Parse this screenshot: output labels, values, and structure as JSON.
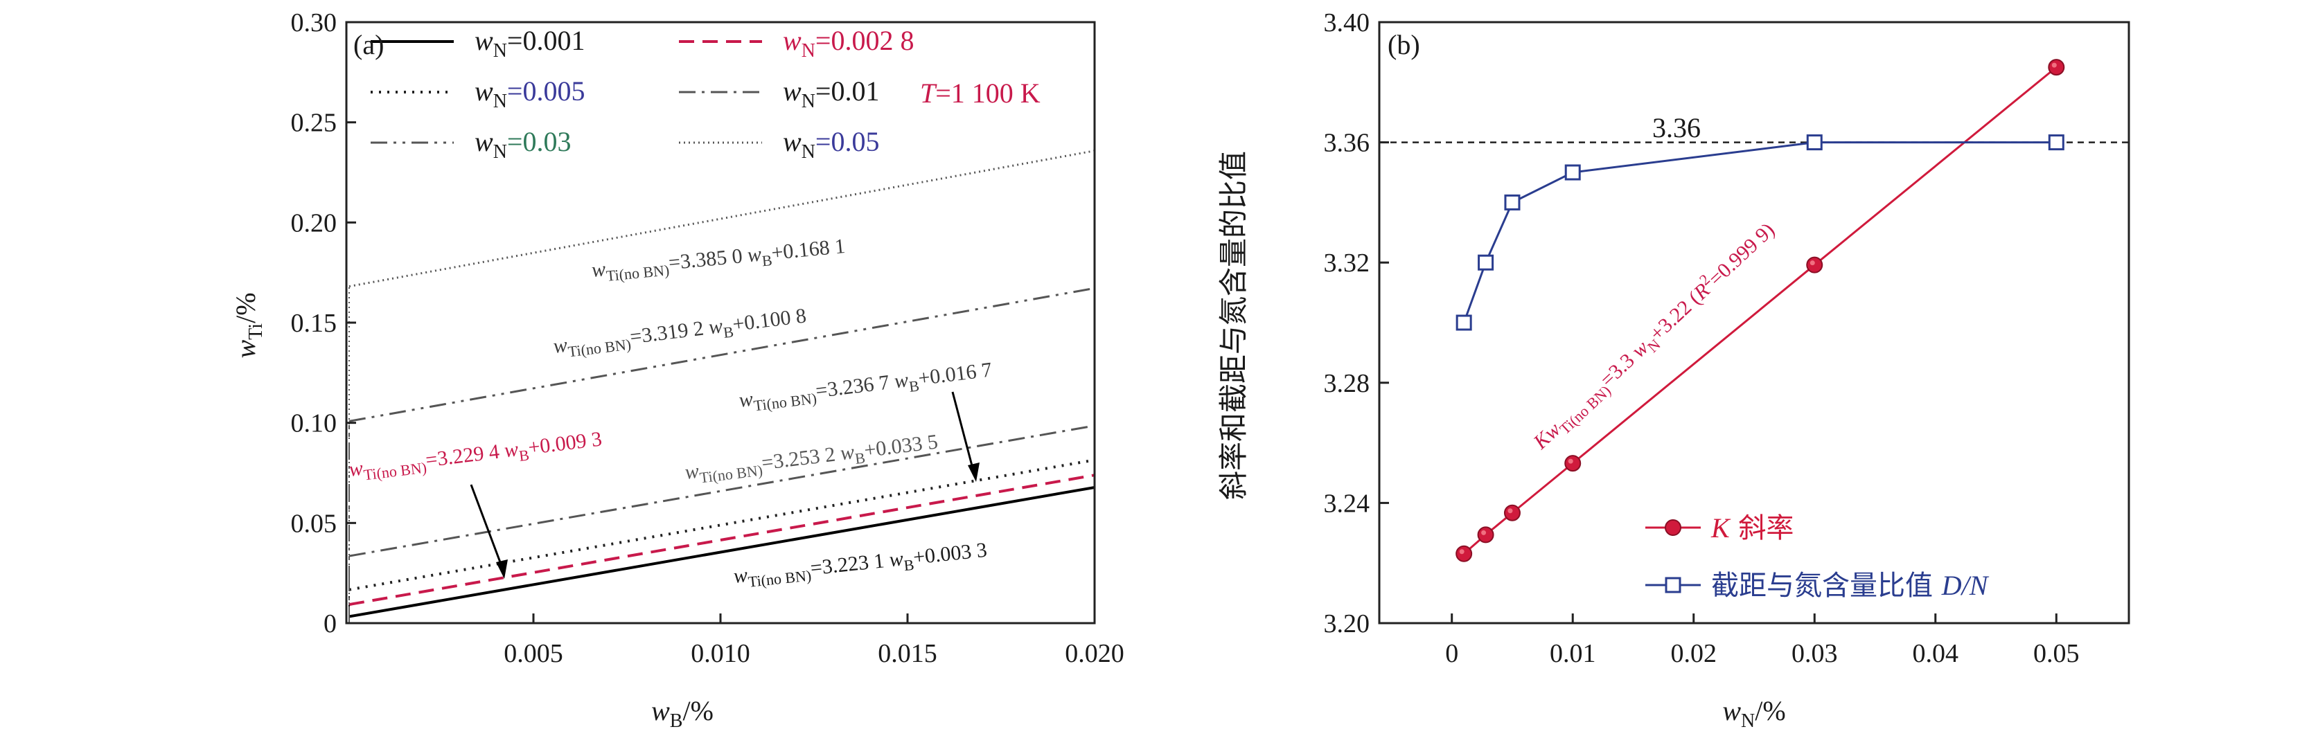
{
  "chart_data": [
    {
      "panel": "(a)",
      "type": "line",
      "xlabel": "w_B/%",
      "ylabel": "w_Ti/%",
      "xlim": [
        0,
        0.02
      ],
      "ylim": [
        0,
        0.3
      ],
      "xticks": [
        "0.005",
        "0.010",
        "0.015",
        "0.020"
      ],
      "yticks": [
        "0",
        "0.05",
        "0.10",
        "0.15",
        "0.20",
        "0.25",
        "0.30"
      ],
      "condition": "T=1 100 K",
      "series": [
        {
          "name": "w_N=0.001",
          "legend_prefix": "w",
          "legend_sub": "N",
          "legend_value": "=0.001",
          "intercept": 0.0033,
          "slope": 3.2231,
          "color": "#000000",
          "dash": "",
          "width": 4
        },
        {
          "name": "w_N=0.002 8",
          "legend_prefix": "w",
          "legend_sub": "N",
          "legend_value": "=0.002 8",
          "intercept": 0.0093,
          "slope": 3.2294,
          "color": "#c8194b",
          "dash": "22,12",
          "width": 4
        },
        {
          "name": "w_N=0.005",
          "legend_prefix": "w",
          "legend_sub": "N",
          "legend_value": "=0.005",
          "intercept": 0.0167,
          "slope": 3.2367,
          "color": "#222222",
          "dash": "3,9",
          "width": 4
        },
        {
          "name": "w_N=0.01",
          "legend_prefix": "w",
          "legend_sub": "N",
          "legend_value": "=0.01",
          "intercept": 0.0335,
          "slope": 3.2532,
          "color": "#555555",
          "dash": "24,9,4,9",
          "width": 3
        },
        {
          "name": "w_N=0.03",
          "legend_prefix": "w",
          "legend_sub": "N",
          "legend_value": "=0.03",
          "intercept": 0.1008,
          "slope": 3.3192,
          "color": "#555555",
          "dash": "24,9,4,9,4,9",
          "width": 3
        },
        {
          "name": "w_N=0.05",
          "legend_prefix": "w",
          "legend_sub": "N",
          "legend_value": "=0.05",
          "intercept": 0.1681,
          "slope": 3.385,
          "color": "#555555",
          "dash": "2,5",
          "width": 3
        }
      ],
      "equations": [
        {
          "prefix": "w",
          "sub": "Ti(no BN)",
          "mid": "=3.223 1 w",
          "sub2": "B",
          "tail": "+0.003 3",
          "color": "#1a1a1a"
        },
        {
          "prefix": "w",
          "sub": "Ti(no BN)",
          "mid": "=3.229 4 w",
          "sub2": "B",
          "tail": "+0.009 3",
          "color": "#c8194b"
        },
        {
          "prefix": "w",
          "sub": "Ti(no BN)",
          "mid": "=3.236 7 w",
          "sub2": "B",
          "tail": "+0.016 7",
          "color": "#3a3a3a"
        },
        {
          "prefix": "w",
          "sub": "Ti(no BN)",
          "mid": "=3.253 2 w",
          "sub2": "B",
          "tail": "+0.033 5",
          "color": "#555555"
        },
        {
          "prefix": "w",
          "sub": "Ti(no BN)",
          "mid": "=3.319 2 w",
          "sub2": "B",
          "tail": "+0.100 8",
          "color": "#3a3a3a"
        },
        {
          "prefix": "w",
          "sub": "Ti(no BN)",
          "mid": "=3.385 0 w",
          "sub2": "B",
          "tail": "+0.168 1",
          "color": "#3a3a3a"
        }
      ]
    },
    {
      "panel": "(b)",
      "type": "line",
      "xlabel": "w_N/%",
      "ylabel": "斜率和截距与氮含量的比值",
      "xlim": [
        -0.006,
        0.056
      ],
      "ylim": [
        3.2,
        3.4
      ],
      "xticks": [
        "0",
        "0.01",
        "0.02",
        "0.03",
        "0.04",
        "0.05"
      ],
      "yticks": [
        "3.20",
        "3.24",
        "3.28",
        "3.32",
        "3.36",
        "3.40"
      ],
      "reference_line": {
        "y": 3.36,
        "label": "3.36"
      },
      "fit_equation": "Kw_Ti(no BN)=3.3 w_N+3.22 (R²=0.999 9)",
      "series": [
        {
          "name": "K 斜率",
          "legend_italic": "K",
          "legend_text": " 斜率",
          "marker": "circle",
          "color": "#d01a3c",
          "x": [
            0.001,
            0.0028,
            0.005,
            0.01,
            0.03,
            0.05
          ],
          "y": [
            3.2231,
            3.2294,
            3.2367,
            3.2532,
            3.3192,
            3.385
          ]
        },
        {
          "name": "截距与氮含量比值 D/N",
          "legend_text": "截距与氮含量比值 ",
          "legend_italic": "D/N",
          "marker": "square",
          "color": "#2a3d8f",
          "x": [
            0.001,
            0.0028,
            0.005,
            0.01,
            0.03,
            0.05
          ],
          "y": [
            3.3,
            3.32,
            3.34,
            3.35,
            3.36,
            3.36
          ]
        }
      ]
    }
  ]
}
